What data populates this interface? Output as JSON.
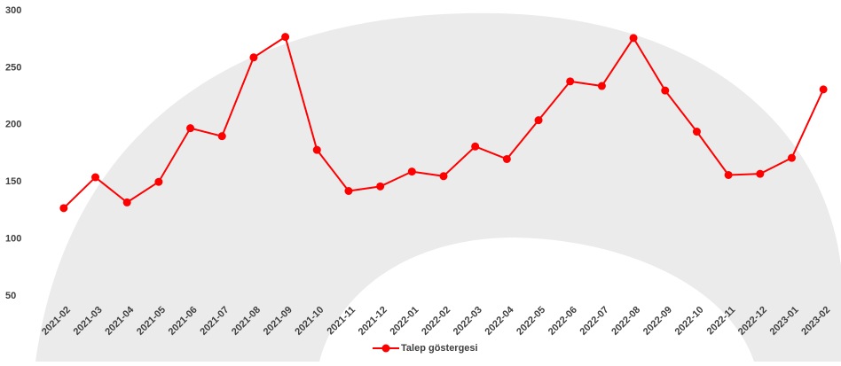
{
  "chart_data": {
    "type": "line",
    "categories": [
      "2021-02",
      "2021-03",
      "2021-04",
      "2021-05",
      "2021-06",
      "2021-07",
      "2021-08",
      "2021-09",
      "2021-10",
      "2021-11",
      "2021-12",
      "2022-01",
      "2022-02",
      "2022-03",
      "2022-04",
      "2022-05",
      "2022-06",
      "2022-07",
      "2022-08",
      "2022-09",
      "2022-10",
      "2022-11",
      "2022-12",
      "2023-01",
      "2023-02"
    ],
    "series": [
      {
        "name": "Talep göstergesi",
        "color": "#ff0000",
        "values": [
          127,
          154,
          132,
          150,
          197,
          190,
          259,
          277,
          178,
          142,
          146,
          159,
          155,
          181,
          170,
          204,
          238,
          234,
          276,
          230,
          194,
          156,
          157,
          171,
          231
        ]
      }
    ],
    "ylim": [
      50,
      300
    ],
    "yticks": [
      50,
      100,
      150,
      200,
      250,
      300
    ],
    "grid": false,
    "legend": "bottom"
  }
}
